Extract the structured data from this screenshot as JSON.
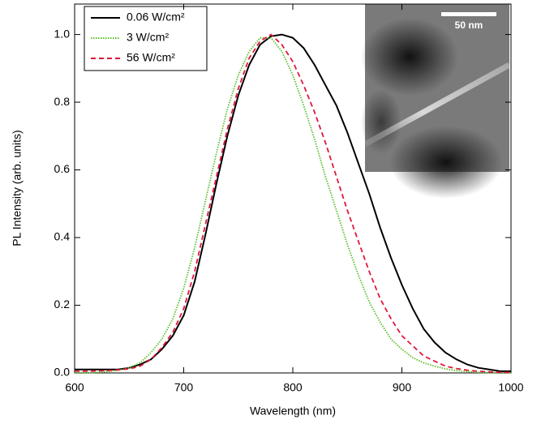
{
  "chart_data": {
    "type": "line",
    "xlabel": "Wavelength (nm)",
    "ylabel": "PL Intensity (arb. units)",
    "x": [
      600,
      610,
      620,
      630,
      640,
      650,
      660,
      670,
      680,
      690,
      700,
      710,
      720,
      730,
      740,
      750,
      760,
      770,
      780,
      790,
      800,
      810,
      820,
      830,
      840,
      850,
      860,
      870,
      880,
      890,
      900,
      910,
      920,
      930,
      940,
      950,
      960,
      970,
      980,
      990,
      1000
    ],
    "series": [
      {
        "name": "0.06 W/cm²",
        "color": "#000000",
        "style": "solid",
        "values": [
          0.01,
          0.01,
          0.01,
          0.01,
          0.01,
          0.015,
          0.025,
          0.04,
          0.07,
          0.11,
          0.17,
          0.27,
          0.41,
          0.56,
          0.7,
          0.82,
          0.91,
          0.97,
          0.995,
          1.0,
          0.99,
          0.96,
          0.91,
          0.85,
          0.79,
          0.71,
          0.62,
          0.53,
          0.43,
          0.34,
          0.26,
          0.19,
          0.13,
          0.09,
          0.06,
          0.04,
          0.025,
          0.015,
          0.01,
          0.005,
          0.005
        ]
      },
      {
        "name": "3 W/cm²",
        "color": "#5cbf2a",
        "style": "dotted",
        "values": [
          0,
          0,
          0.002,
          0.004,
          0.008,
          0.015,
          0.03,
          0.06,
          0.1,
          0.16,
          0.25,
          0.37,
          0.51,
          0.65,
          0.78,
          0.88,
          0.95,
          0.99,
          0.99,
          0.95,
          0.88,
          0.79,
          0.69,
          0.58,
          0.48,
          0.38,
          0.29,
          0.21,
          0.15,
          0.1,
          0.07,
          0.045,
          0.03,
          0.02,
          0.012,
          0.007,
          0.004,
          0.002,
          0.001,
          0,
          0
        ]
      },
      {
        "name": "56 W/cm²",
        "color": "#e0173a",
        "style": "dashed",
        "values": [
          0.005,
          0.005,
          0.006,
          0.007,
          0.009,
          0.012,
          0.02,
          0.04,
          0.075,
          0.12,
          0.19,
          0.3,
          0.44,
          0.58,
          0.72,
          0.84,
          0.93,
          0.98,
          1.0,
          0.97,
          0.92,
          0.85,
          0.77,
          0.68,
          0.58,
          0.48,
          0.39,
          0.3,
          0.22,
          0.16,
          0.11,
          0.08,
          0.05,
          0.035,
          0.02,
          0.013,
          0.008,
          0.005,
          0.003,
          0.002,
          0.001
        ]
      }
    ],
    "xlim": [
      600,
      1000
    ],
    "xticks": [
      600,
      700,
      800,
      900,
      1000
    ],
    "ylim": [
      0,
      1.09
    ],
    "yticks": [
      {
        "value": 0,
        "label": "0.0"
      },
      0.2,
      0.4,
      0.6,
      0.8,
      {
        "value": 1,
        "label": "1.0"
      }
    ],
    "legend": "top-left",
    "inset_scale_label": "50 nm"
  }
}
